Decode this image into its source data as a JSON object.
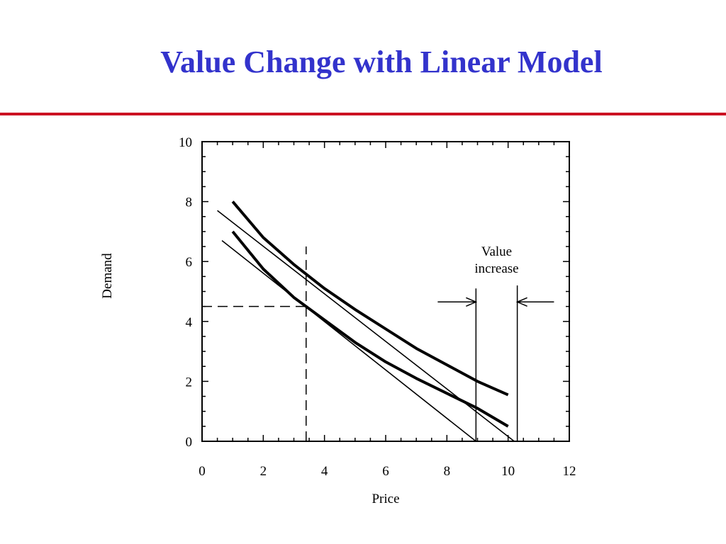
{
  "slide": {
    "title": "Value Change with Linear Model",
    "title_color": "#3333cc",
    "rule_color": "#cc1122"
  },
  "chart_data": {
    "type": "line",
    "xlabel": "Price",
    "ylabel": "Demand",
    "xlim": [
      0,
      12
    ],
    "ylim": [
      0,
      10
    ],
    "xticks": [
      0,
      2,
      4,
      6,
      8,
      10,
      12
    ],
    "yticks": [
      0,
      2,
      4,
      6,
      8,
      10
    ],
    "grid": false,
    "series": [
      {
        "style": "thick",
        "x": [
          1,
          2,
          3,
          4,
          5,
          6,
          7,
          8,
          9,
          10
        ],
        "y": [
          8.0,
          6.8,
          5.9,
          5.1,
          4.4,
          3.75,
          3.1,
          2.55,
          2.0,
          1.55
        ]
      },
      {
        "style": "thick",
        "x": [
          1,
          2,
          3,
          4,
          5,
          6,
          7,
          8,
          9,
          10
        ],
        "y": [
          7.0,
          5.75,
          4.8,
          4.05,
          3.3,
          2.65,
          2.1,
          1.6,
          1.1,
          0.5
        ]
      },
      {
        "style": "thin",
        "x": [
          0.5,
          10.2
        ],
        "y": [
          7.7,
          0.0
        ]
      },
      {
        "style": "thin",
        "x": [
          0.65,
          8.95
        ],
        "y": [
          6.7,
          0.0
        ]
      }
    ],
    "reference_lines": [
      {
        "style": "dashed",
        "x": [
          0,
          3.4
        ],
        "y": [
          4.5,
          4.5
        ]
      },
      {
        "style": "dashed",
        "x": [
          3.4,
          3.4
        ],
        "y": [
          0,
          6.5
        ]
      },
      {
        "style": "solid",
        "x": [
          8.95,
          8.95
        ],
        "y": [
          0,
          5.1
        ]
      },
      {
        "style": "solid",
        "x": [
          10.3,
          10.3
        ],
        "y": [
          0,
          5.2
        ]
      }
    ],
    "annotations": {
      "value_increase_line1": "Value",
      "value_increase_line2": "increase",
      "arrows": [
        {
          "from": [
            7.7,
            4.65
          ],
          "to": [
            8.95,
            4.65
          ]
        },
        {
          "from": [
            11.5,
            4.65
          ],
          "to": [
            10.3,
            4.65
          ]
        }
      ]
    }
  }
}
